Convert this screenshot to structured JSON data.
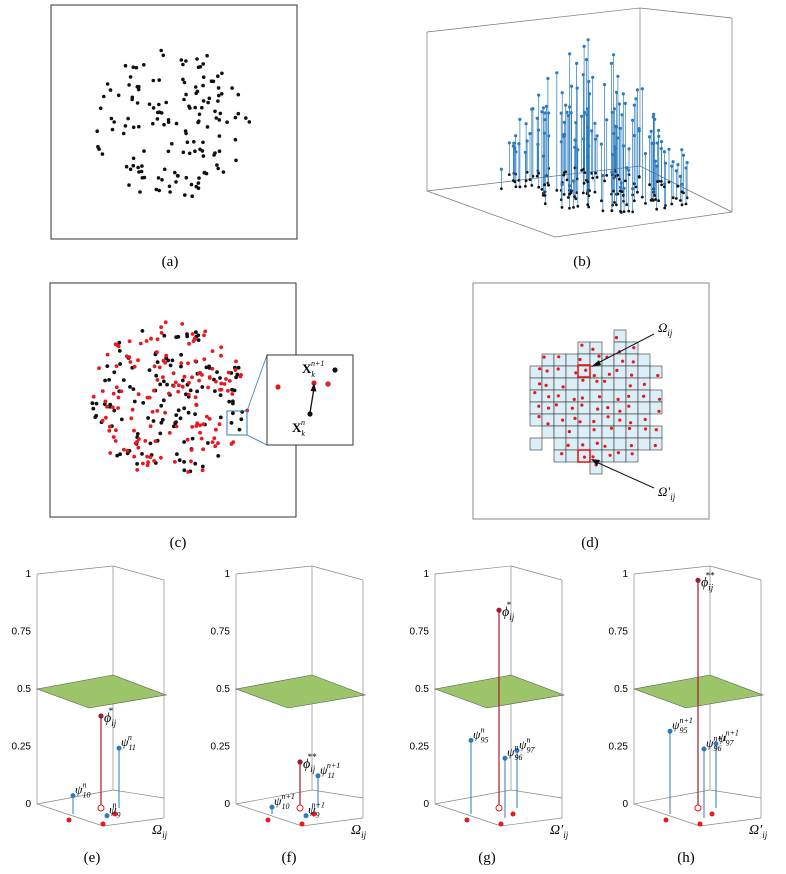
{
  "captions": [
    "(a)",
    "(b)",
    "(c)",
    "(d)",
    "(e)",
    "(f)",
    "(g)",
    "(h)"
  ],
  "colors": {
    "black": "#111111",
    "red": "#e8191e",
    "blue": "#2a7bbf",
    "darkred": "#a5192e",
    "plane": "#9cc56a",
    "cell": "#dceef6"
  },
  "panel_c": {
    "inset_top": "X",
    "inset_top_sub": "k",
    "inset_top_sup": "n+1",
    "inset_bottom": "X",
    "inset_bottom_sub": "k",
    "inset_bottom_sup": "n"
  },
  "panel_d": {
    "label_top": "Ω",
    "label_top_sub": "ij",
    "label_bottom": "Ω′",
    "label_bottom_sub": "ij"
  },
  "axis_ticks": [
    "0",
    "0.25",
    "0.5",
    "0.75",
    "1"
  ],
  "panel_e": {
    "axis_label": "Ω",
    "axis_label_sub": "ij",
    "phi": "ϕ",
    "phi_sup": "*",
    "phi_sub": "ij",
    "psi_a": "ψ",
    "psi_a_sub": "10",
    "psi_a_sup": "n",
    "psi_b": "ψ",
    "psi_b_sub": "11",
    "psi_b_sup": "n",
    "psi_c": "ψ",
    "psi_c_sub": "9",
    "psi_c_sup": "n"
  },
  "panel_f": {
    "axis_label": "Ω",
    "axis_label_sub": "ij",
    "phi": "ϕ",
    "phi_sup": "**",
    "phi_sub": "ij",
    "psi_a": "ψ",
    "psi_a_sub": "10",
    "psi_a_sup": "n+1",
    "psi_b": "ψ",
    "psi_b_sub": "11",
    "psi_b_sup": "n+1",
    "psi_c": "ψ",
    "psi_c_sub": "9",
    "psi_c_sup": "n+1"
  },
  "panel_g": {
    "axis_label": "Ω′",
    "axis_label_sub": "ij",
    "phi": "ϕ",
    "phi_sup": "*",
    "phi_sub": "ij",
    "psi_a": "ψ",
    "psi_a_sub": "95",
    "psi_a_sup": "n",
    "psi_b": "ψ",
    "psi_b_sub": "97",
    "psi_b_sup": "n",
    "psi_c": "ψ",
    "psi_c_sub": "96",
    "psi_c_sup": "n"
  },
  "panel_h": {
    "axis_label": "Ω′",
    "axis_label_sub": "ij",
    "phi": "ϕ",
    "phi_sup": "**",
    "phi_sub": "ij",
    "psi_a": "ψ",
    "psi_a_sub": "95",
    "psi_a_sup": "n+1",
    "psi_b": "ψ",
    "psi_b_sub": "97",
    "psi_b_sup": "n+1",
    "psi_c": "ψ",
    "psi_c_sub": "96",
    "psi_c_sup": "n+1"
  }
}
